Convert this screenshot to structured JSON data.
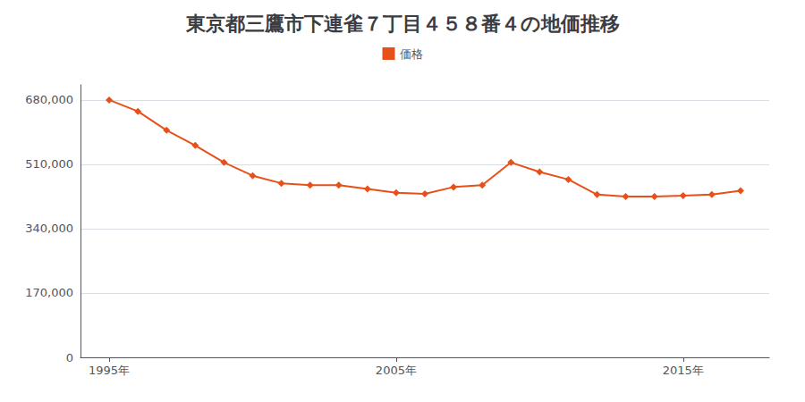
{
  "chart_data": {
    "type": "line",
    "title": "東京都三鷹市下連雀７丁目４５８番４の地価推移",
    "x": [
      1995,
      1996,
      1997,
      1998,
      1999,
      2000,
      2001,
      2002,
      2003,
      2004,
      2005,
      2006,
      2007,
      2008,
      2009,
      2010,
      2011,
      2012,
      2013,
      2014,
      2015,
      2016,
      2017
    ],
    "series": [
      {
        "name": "価格",
        "color": "#E8501A",
        "marker": "diamond",
        "values": [
          680000,
          650000,
          600000,
          560000,
          515000,
          480000,
          460000,
          455000,
          455000,
          445000,
          435000,
          432000,
          450000,
          455000,
          515000,
          490000,
          470000,
          430000,
          425000,
          425000,
          427000,
          430000,
          440000
        ]
      }
    ],
    "xlim": [
      1994,
      2018
    ],
    "xticks": [
      {
        "value": 1995,
        "label": "1995年"
      },
      {
        "value": 2005,
        "label": "2005年"
      },
      {
        "value": 2015,
        "label": "2015年"
      }
    ],
    "ylim": [
      0,
      720000
    ],
    "yticks": [
      0,
      {
        "value": 170000,
        "label": "170,000"
      },
      {
        "value": 340000,
        "label": "340,000"
      },
      {
        "value": 510000,
        "label": "510,000"
      },
      {
        "value": 680000,
        "label": "680,000"
      }
    ],
    "grid": true,
    "legend": "top"
  }
}
